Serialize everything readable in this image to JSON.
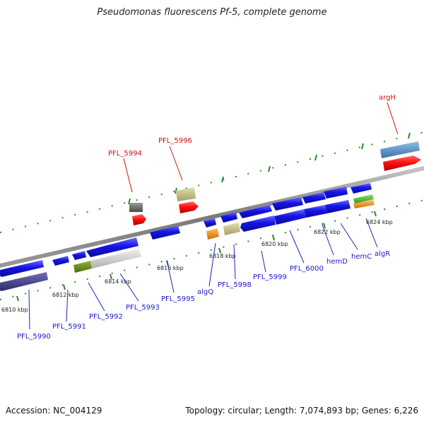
{
  "title": "Pseudomonas fluorescens Pf-5, complete genome",
  "footer": {
    "accession": "Accession: NC_004129",
    "summary": "Topology: circular; Length: 7,074,893 bp; Genes: 6,226"
  },
  "ruler": {
    "ticks": [
      "6810 kbp",
      "6812 kbp",
      "6814 kbp",
      "6816 kbp",
      "6818 kbp",
      "6820 kbp",
      "6822 kbp",
      "6824 kbp"
    ]
  },
  "gene_labels": {
    "reverse": [
      "PFL_5990",
      "PFL_5991",
      "PFL_5992",
      "PFL_5993",
      "PFL_5995",
      "algQ",
      "PFL_5998",
      "PFL_5999",
      "PFL_6000",
      "hemD",
      "hemC",
      "algR"
    ],
    "forward": [
      "PFL_5994",
      "PFL_5996",
      "argH"
    ]
  },
  "colors": {
    "reverse_cds": "#1414e0",
    "forward_cds": "#ff1414",
    "backbone": "#8a8a8a",
    "tick_green": "#2a8a2a",
    "label_blue": "#1a1acc",
    "label_red": "#cc1111"
  }
}
